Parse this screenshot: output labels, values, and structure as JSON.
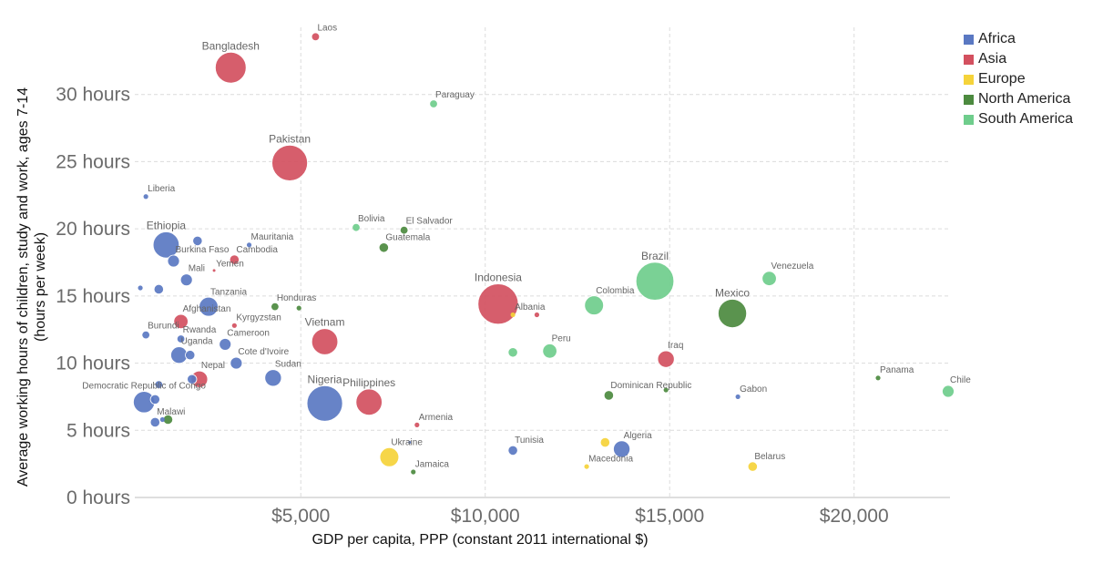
{
  "chart_data": {
    "type": "scatter",
    "title": "",
    "xlabel": "GDP per capita, PPP (constant 2011 international $)",
    "ylabel_lines": [
      "Average working hours of children, study and work, ages 7-14",
      "(hours per week)"
    ],
    "xlim": [
      500,
      22600
    ],
    "ylim": [
      0,
      35
    ],
    "x_ticks": [
      5000,
      10000,
      15000,
      20000
    ],
    "x_tick_labels": [
      "$5,000",
      "$10,000",
      "$15,000",
      "$20,000"
    ],
    "y_ticks": [
      0,
      5,
      10,
      15,
      20,
      25,
      30
    ],
    "y_tick_labels": [
      "0 hours",
      "5 hours",
      "10 hours",
      "15 hours",
      "20 hours",
      "25 hours",
      "30 hours"
    ],
    "grid": true,
    "legend_position": "top-right",
    "bubble_size_legend": "none",
    "colors": {
      "Africa": "#5a78c2",
      "Asia": "#d3505f",
      "Europe": "#f5d33a",
      "North America": "#4c8a3f",
      "South America": "#6fcd8c"
    },
    "legend": [
      "Africa",
      "Asia",
      "Europe",
      "North America",
      "South America"
    ],
    "points": [
      {
        "label": "Laos",
        "x": 5400,
        "y": 34.3,
        "region": "Asia",
        "size": 3
      },
      {
        "label": "Bangladesh",
        "x": 3100,
        "y": 32.0,
        "region": "Asia",
        "size": 13
      },
      {
        "label": "Paraguay",
        "x": 8600,
        "y": 29.3,
        "region": "South America",
        "size": 3
      },
      {
        "label": "Pakistan",
        "x": 4700,
        "y": 24.9,
        "region": "Asia",
        "size": 15
      },
      {
        "label": "Liberia",
        "x": 800,
        "y": 22.4,
        "region": "Africa",
        "size": 2
      },
      {
        "label": "Bolivia",
        "x": 6500,
        "y": 20.1,
        "region": "South America",
        "size": 3
      },
      {
        "label": "El Salvador",
        "x": 7800,
        "y": 19.9,
        "region": "North America",
        "size": 3
      },
      {
        "label": "Ethiopia",
        "x": 1350,
        "y": 18.8,
        "region": "Africa",
        "size": 11
      },
      {
        "label": "",
        "x": 2200,
        "y": 19.1,
        "region": "Africa",
        "size": 4
      },
      {
        "label": "Mauritania",
        "x": 3600,
        "y": 18.8,
        "region": "Africa",
        "size": 2
      },
      {
        "label": "Guatemala",
        "x": 7250,
        "y": 18.6,
        "region": "North America",
        "size": 4
      },
      {
        "label": "Burkina Faso",
        "x": 1550,
        "y": 17.6,
        "region": "Africa",
        "size": 5
      },
      {
        "label": "Cambodia",
        "x": 3200,
        "y": 17.7,
        "region": "Asia",
        "size": 4
      },
      {
        "label": "Yemen",
        "x": 2650,
        "y": 16.9,
        "region": "Asia",
        "size": 1
      },
      {
        "label": "Mali",
        "x": 1900,
        "y": 16.2,
        "region": "Africa",
        "size": 5
      },
      {
        "label": "",
        "x": 650,
        "y": 15.6,
        "region": "Africa",
        "size": 2
      },
      {
        "label": "",
        "x": 1150,
        "y": 15.5,
        "region": "Africa",
        "size": 4
      },
      {
        "label": "Tanzania",
        "x": 2500,
        "y": 14.2,
        "region": "Africa",
        "size": 8
      },
      {
        "label": "Honduras",
        "x": 4300,
        "y": 14.2,
        "region": "North America",
        "size": 3
      },
      {
        "label": "",
        "x": 4950,
        "y": 14.1,
        "region": "North America",
        "size": 2
      },
      {
        "label": "Afghanistan",
        "x": 1750,
        "y": 13.1,
        "region": "Asia",
        "size": 6
      },
      {
        "label": "Kyrgyzstan",
        "x": 3200,
        "y": 12.8,
        "region": "Asia",
        "size": 2
      },
      {
        "label": "Indonesia",
        "x": 10350,
        "y": 14.4,
        "region": "Asia",
        "size": 17
      },
      {
        "label": "Albania",
        "x": 10750,
        "y": 13.6,
        "region": "Europe",
        "size": 2
      },
      {
        "label": "",
        "x": 11400,
        "y": 13.6,
        "region": "Asia",
        "size": 2
      },
      {
        "label": "Colombia",
        "x": 12950,
        "y": 14.3,
        "region": "South America",
        "size": 8
      },
      {
        "label": "Brazil",
        "x": 14600,
        "y": 16.1,
        "region": "South America",
        "size": 16
      },
      {
        "label": "Venezuela",
        "x": 17700,
        "y": 16.3,
        "region": "South America",
        "size": 6
      },
      {
        "label": "Mexico",
        "x": 16700,
        "y": 13.7,
        "region": "North America",
        "size": 12
      },
      {
        "label": "Burundi",
        "x": 800,
        "y": 12.1,
        "region": "Africa",
        "size": 3
      },
      {
        "label": "Rwanda",
        "x": 1750,
        "y": 11.8,
        "region": "Africa",
        "size": 3
      },
      {
        "label": "Cameroon",
        "x": 2950,
        "y": 11.4,
        "region": "Africa",
        "size": 5
      },
      {
        "label": "Vietnam",
        "x": 5650,
        "y": 11.6,
        "region": "Asia",
        "size": 11
      },
      {
        "label": "Uganda",
        "x": 1700,
        "y": 10.6,
        "region": "Africa",
        "size": 7
      },
      {
        "label": "",
        "x": 2000,
        "y": 10.6,
        "region": "Africa",
        "size": 4
      },
      {
        "label": "Cote d'Ivoire",
        "x": 3250,
        "y": 10.0,
        "region": "Africa",
        "size": 5
      },
      {
        "label": "Peru",
        "x": 11750,
        "y": 10.9,
        "region": "South America",
        "size": 6
      },
      {
        "label": "",
        "x": 10750,
        "y": 10.8,
        "region": "South America",
        "size": 4
      },
      {
        "label": "Iraq",
        "x": 14900,
        "y": 10.3,
        "region": "Asia",
        "size": 7
      },
      {
        "label": "Nepal",
        "x": 2250,
        "y": 8.8,
        "region": "Asia",
        "size": 7
      },
      {
        "label": "",
        "x": 2050,
        "y": 8.8,
        "region": "Africa",
        "size": 4
      },
      {
        "label": "Sudan",
        "x": 4250,
        "y": 8.9,
        "region": "Africa",
        "size": 7
      },
      {
        "label": "Panama",
        "x": 20650,
        "y": 8.9,
        "region": "North America",
        "size": 2
      },
      {
        "label": "Chile",
        "x": 22550,
        "y": 7.9,
        "region": "South America",
        "size": 5
      },
      {
        "label": "Democratic Republic of Congo",
        "x": 750,
        "y": 7.1,
        "region": "Africa",
        "size": 9
      },
      {
        "label": "",
        "x": 1150,
        "y": 8.4,
        "region": "Africa",
        "size": 3
      },
      {
        "label": "",
        "x": 1050,
        "y": 7.3,
        "region": "Africa",
        "size": 4
      },
      {
        "label": "Nigeria",
        "x": 5650,
        "y": 7.0,
        "region": "Africa",
        "size": 15
      },
      {
        "label": "Philippines",
        "x": 6850,
        "y": 7.1,
        "region": "Asia",
        "size": 11
      },
      {
        "label": "Dominican Republic",
        "x": 13350,
        "y": 7.6,
        "region": "North America",
        "size": 4
      },
      {
        "label": "",
        "x": 14900,
        "y": 8.0,
        "region": "North America",
        "size": 2
      },
      {
        "label": "Gabon",
        "x": 16850,
        "y": 7.5,
        "region": "Africa",
        "size": 2
      },
      {
        "label": "Malawi",
        "x": 1050,
        "y": 5.6,
        "region": "Africa",
        "size": 4
      },
      {
        "label": "",
        "x": 1250,
        "y": 5.8,
        "region": "Africa",
        "size": 2
      },
      {
        "label": "",
        "x": 1400,
        "y": 5.8,
        "region": "North America",
        "size": 4
      },
      {
        "label": "Armenia",
        "x": 8150,
        "y": 5.4,
        "region": "Asia",
        "size": 2
      },
      {
        "label": "Ukraine",
        "x": 7400,
        "y": 3.0,
        "region": "Europe",
        "size": 8
      },
      {
        "label": "",
        "x": 7950,
        "y": 4.1,
        "region": "Africa",
        "size": 1
      },
      {
        "label": "Tunisia",
        "x": 10750,
        "y": 3.5,
        "region": "Africa",
        "size": 4
      },
      {
        "label": "Algeria",
        "x": 13700,
        "y": 3.6,
        "region": "Africa",
        "size": 7
      },
      {
        "label": "",
        "x": 13250,
        "y": 4.1,
        "region": "Europe",
        "size": 4
      },
      {
        "label": "Macedonia",
        "x": 12750,
        "y": 2.3,
        "region": "Europe",
        "size": 2
      },
      {
        "label": "Belarus",
        "x": 17250,
        "y": 2.3,
        "region": "Europe",
        "size": 4
      },
      {
        "label": "Jamaica",
        "x": 8050,
        "y": 1.9,
        "region": "North America",
        "size": 2
      }
    ]
  }
}
